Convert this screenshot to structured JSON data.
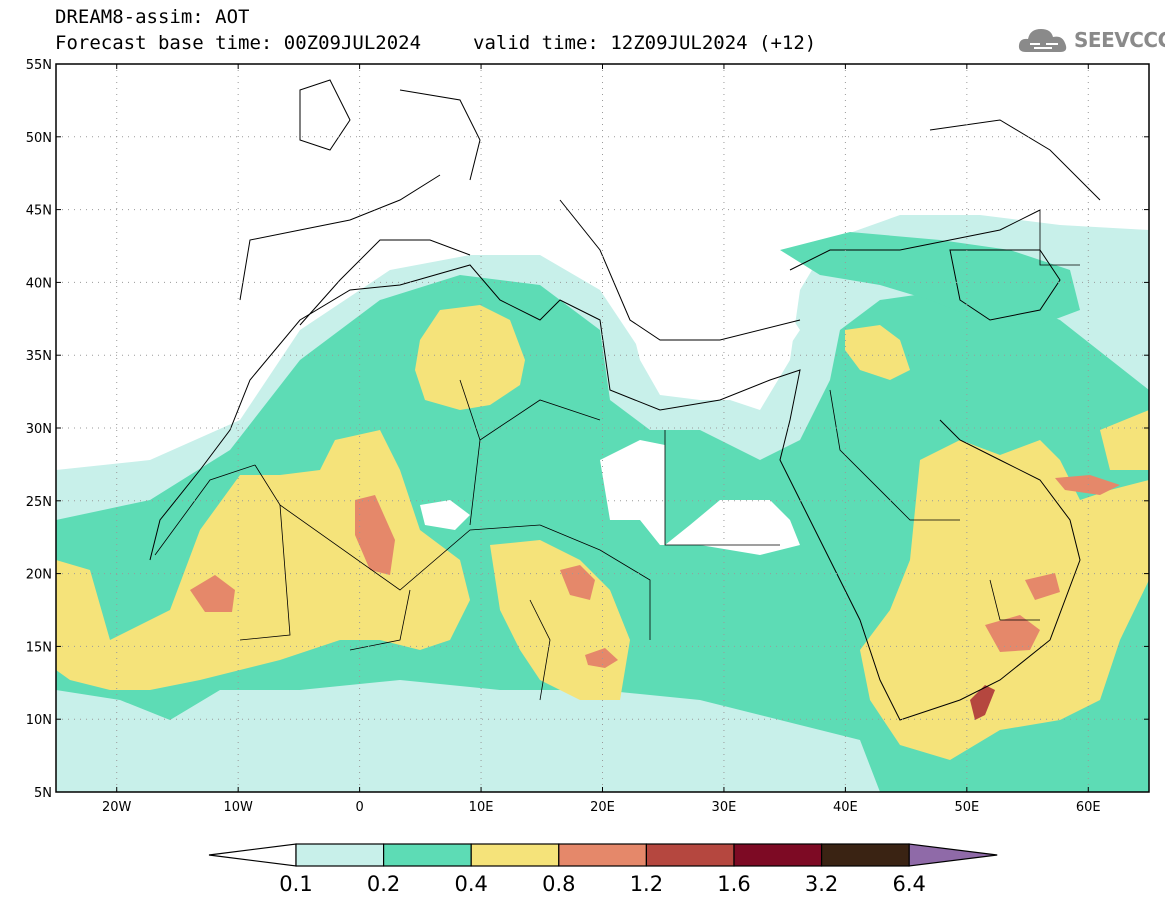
{
  "header": {
    "title": "DREAM8-assim: AOT",
    "forecast_base": "Forecast base time: 00Z09JUL2024",
    "valid_time": "valid time: 12Z09JUL2024 (+12)",
    "logo_text": "SEEVCCC"
  },
  "map": {
    "lon_range": [
      -25,
      65
    ],
    "lat_range": [
      5,
      55
    ],
    "lat_ticks": [
      "55N",
      "50N",
      "45N",
      "40N",
      "35N",
      "30N",
      "25N",
      "20N",
      "15N",
      "10N",
      "5N"
    ],
    "lon_ticks": [
      "20W",
      "10W",
      "0",
      "10E",
      "20E",
      "30E",
      "40E",
      "50E",
      "60E"
    ],
    "grid": "dotted",
    "variable": "AOT"
  },
  "colorbar": {
    "bounds": [
      "0.1",
      "0.2",
      "0.4",
      "0.8",
      "1.2",
      "1.6",
      "3.2",
      "6.4"
    ],
    "colors": [
      "#c8f0ea",
      "#5ddcb5",
      "#f5e37a",
      "#e5886a",
      "#b5473f",
      "#7d0a24",
      "#3a2313"
    ],
    "low_color": "#ffffff",
    "high_color": "#8f6aa8"
  }
}
